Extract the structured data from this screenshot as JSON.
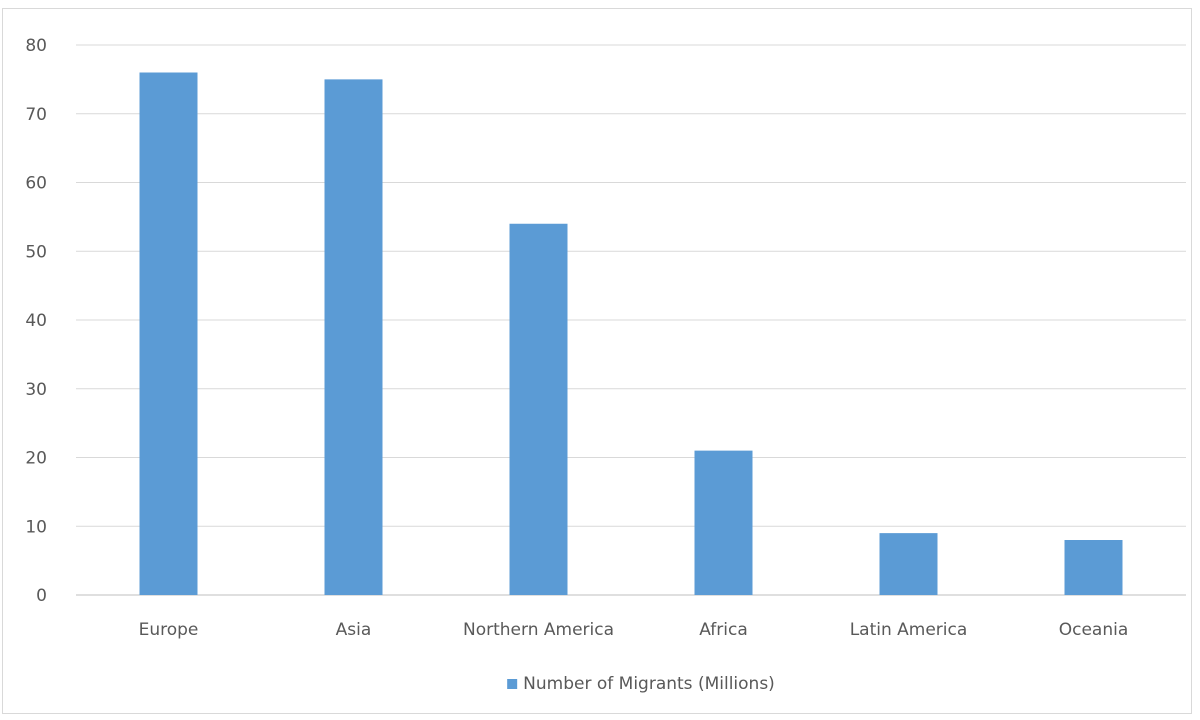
{
  "chart_data": {
    "type": "bar",
    "categories": [
      "Europe",
      "Asia",
      "Northern America",
      "Africa",
      "Latin America",
      "Oceania"
    ],
    "series": [
      {
        "name": "Number of Migrants (Millions)",
        "values": [
          76,
          75,
          54,
          21,
          9,
          8
        ],
        "color": "#5b9bd5"
      }
    ],
    "ylim": [
      0,
      80
    ],
    "yticks": [
      0,
      10,
      20,
      30,
      40,
      50,
      60,
      70,
      80
    ],
    "grid": true,
    "legend_position": "bottom",
    "title": "",
    "xlabel": "",
    "ylabel": ""
  }
}
